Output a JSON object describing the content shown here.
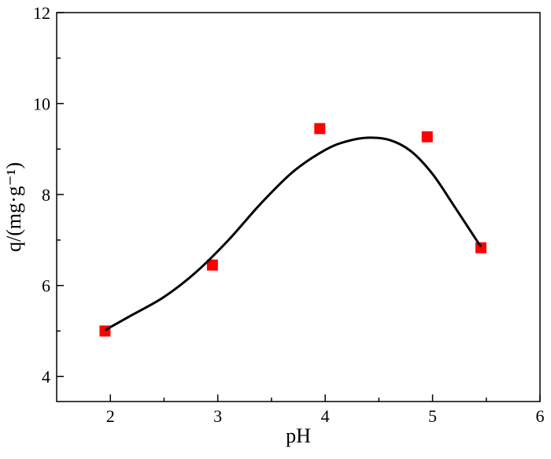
{
  "chart_data": {
    "type": "scatter",
    "x_label": "pH",
    "y_label": "q/(mg·g⁻¹)",
    "xlim": [
      1.5,
      6
    ],
    "xticks": [
      2,
      3,
      4,
      5,
      6
    ],
    "xminorticks": [
      2.5,
      3.5,
      4.5,
      5.5
    ],
    "ylim": [
      3.45,
      12
    ],
    "yticks": [
      4,
      6,
      8,
      10,
      12
    ],
    "yminorticks": [
      5,
      7,
      9,
      11
    ],
    "series": [
      {
        "type": "scatter",
        "color": "#ff0000",
        "x": [
          1.95,
          2.95,
          3.95,
          4.95,
          5.45
        ],
        "values": [
          5.0,
          6.45,
          9.45,
          9.27,
          6.83
        ]
      },
      {
        "type": "line",
        "color": "#000000",
        "x": [
          1.95,
          2.2,
          2.5,
          2.8,
          3.1,
          3.4,
          3.7,
          4.0,
          4.2,
          4.4,
          4.6,
          4.8,
          5.0,
          5.2,
          5.45
        ],
        "values": [
          5.02,
          5.35,
          5.75,
          6.3,
          7.0,
          7.8,
          8.5,
          8.98,
          9.17,
          9.25,
          9.2,
          8.95,
          8.45,
          7.75,
          6.85
        ]
      }
    ]
  }
}
